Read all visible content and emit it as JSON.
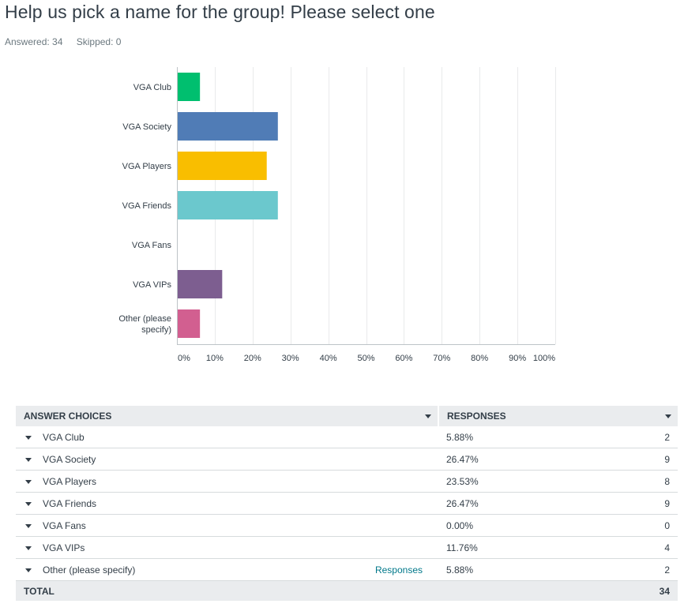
{
  "header": {
    "title": "Help us pick a name for the group! Please select one",
    "answered": "Answered: 34",
    "skipped": "Skipped: 0"
  },
  "chart_data": {
    "type": "bar",
    "orientation": "horizontal",
    "categories": [
      "VGA Club",
      "VGA Society",
      "VGA Players",
      "VGA Friends",
      "VGA Fans",
      "VGA VIPs",
      "Other (please specify)"
    ],
    "values": [
      5.88,
      26.47,
      23.53,
      26.47,
      0.0,
      11.76,
      5.88
    ],
    "colors": [
      "#00bf6f",
      "#507cb6",
      "#f9be00",
      "#6bc8cd",
      "#ff8b4f",
      "#7d5e90",
      "#d25f90"
    ],
    "xticks": [
      "0%",
      "10%",
      "20%",
      "30%",
      "40%",
      "50%",
      "60%",
      "70%",
      "80%",
      "90%",
      "100%"
    ],
    "xlim": [
      0,
      100
    ],
    "grid": true
  },
  "table": {
    "col_choices": "ANSWER CHOICES",
    "col_responses": "RESPONSES",
    "rows": [
      {
        "choice": "VGA Club",
        "percent": "5.88%",
        "count": "2",
        "link": ""
      },
      {
        "choice": "VGA Society",
        "percent": "26.47%",
        "count": "9",
        "link": ""
      },
      {
        "choice": "VGA Players",
        "percent": "23.53%",
        "count": "8",
        "link": ""
      },
      {
        "choice": "VGA Friends",
        "percent": "26.47%",
        "count": "9",
        "link": ""
      },
      {
        "choice": "VGA Fans",
        "percent": "0.00%",
        "count": "0",
        "link": ""
      },
      {
        "choice": "VGA VIPs",
        "percent": "11.76%",
        "count": "4",
        "link": ""
      },
      {
        "choice": "Other (please specify)",
        "percent": "5.88%",
        "count": "2",
        "link": "Responses"
      }
    ],
    "total_label": "TOTAL",
    "total_count": "34"
  }
}
